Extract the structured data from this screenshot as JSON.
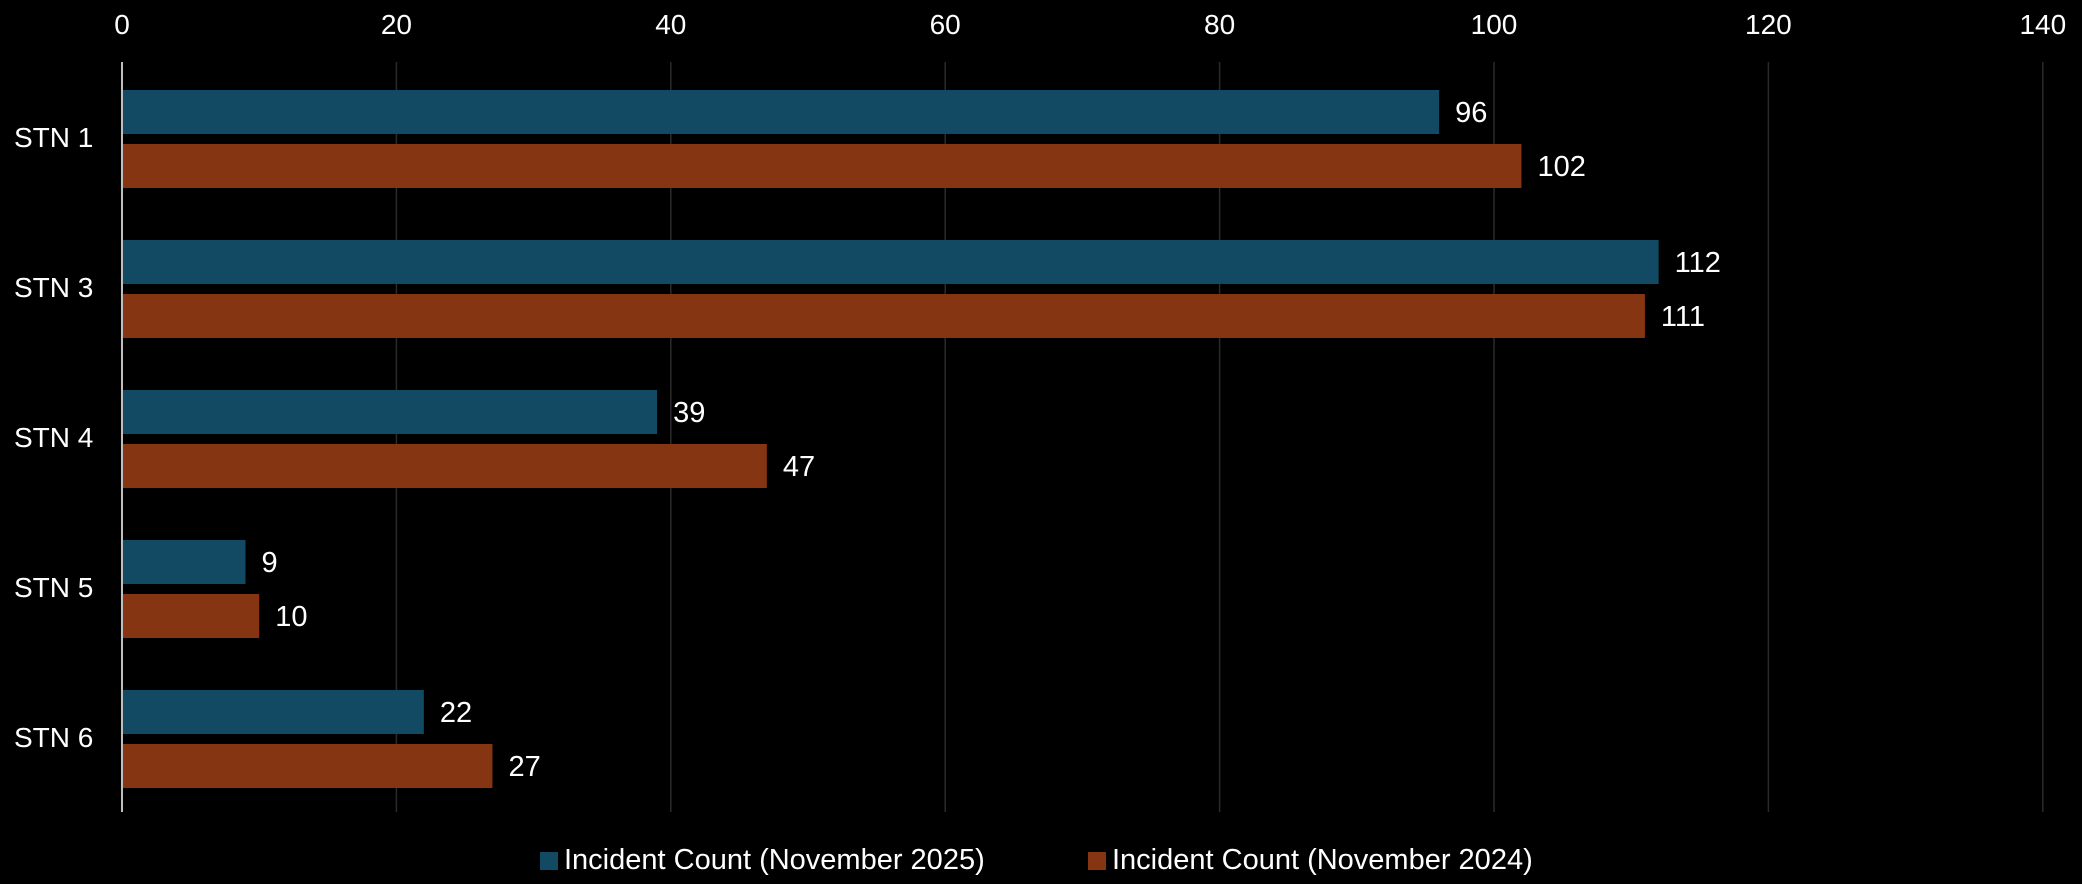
{
  "chart_data": {
    "type": "bar",
    "orientation": "horizontal",
    "categories": [
      "STN 1",
      "STN 3",
      "STN 4",
      "STN 5",
      "STN 6"
    ],
    "series": [
      {
        "name": "Incident Count (November 2025)",
        "values": [
          96,
          112,
          39,
          9,
          22
        ],
        "color": "#124a63"
      },
      {
        "name": "Incident Count (November 2024)",
        "values": [
          102,
          111,
          47,
          10,
          27
        ],
        "color": "#863513"
      }
    ],
    "xlim": [
      0,
      140
    ],
    "xticks": [
      "0",
      "20",
      "40",
      "60",
      "80",
      "100",
      "120",
      "140"
    ],
    "tick_step": 20,
    "axis_position": "top",
    "grid": true,
    "data_labels": true,
    "legend_position": "bottom",
    "title": "",
    "xlabel": "",
    "ylabel": ""
  },
  "colors": {
    "background": "#000000",
    "gridline": "#2a2a2a",
    "axis": "#bfbfbf",
    "text": "#ffffff"
  }
}
